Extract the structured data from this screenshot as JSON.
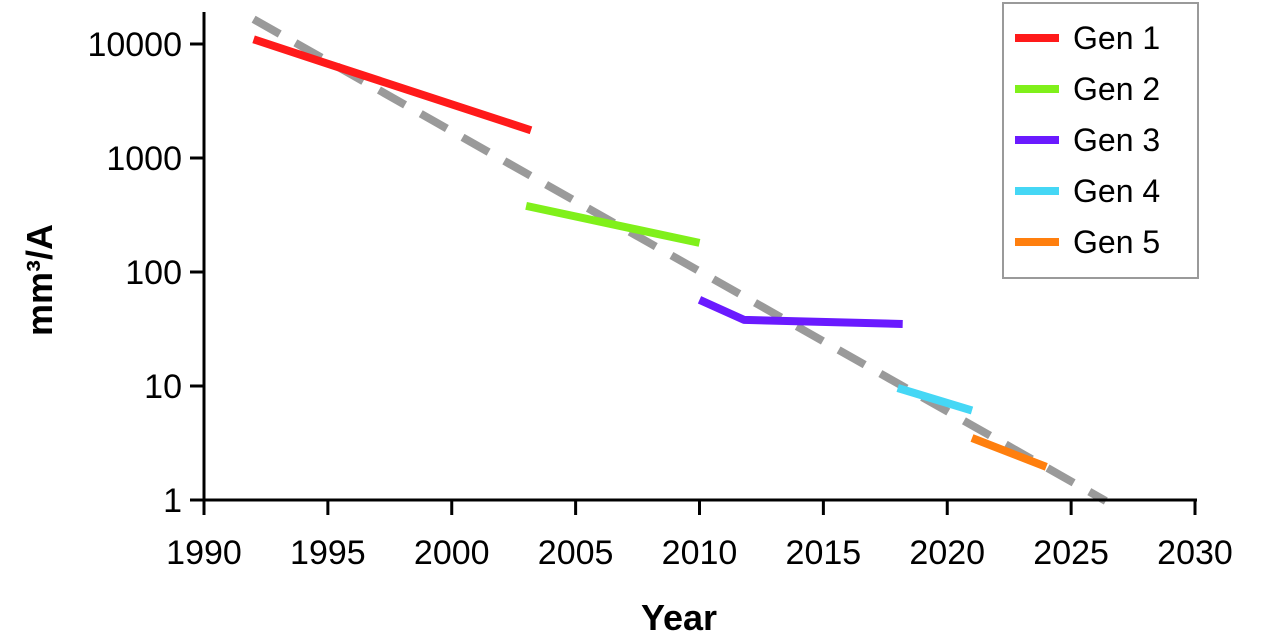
{
  "chart_data": {
    "type": "line",
    "xlabel": "Year",
    "ylabel": "mm³/A",
    "xlim": [
      1990,
      2030
    ],
    "ylim": [
      1,
      20000
    ],
    "yscale": "log",
    "x_ticks": [
      1990,
      1995,
      2000,
      2005,
      2010,
      2015,
      2020,
      2025,
      2030
    ],
    "y_ticks": [
      1,
      10,
      100,
      1000,
      10000
    ],
    "x_tick_labels": [
      "1990",
      "1995",
      "2000",
      "2005",
      "2010",
      "2015",
      "2020",
      "2025",
      "2030"
    ],
    "y_tick_labels": [
      "1",
      "10",
      "100",
      "1000",
      "10000"
    ],
    "grid": false,
    "legend_position": "top-right",
    "series": [
      {
        "name": "Gen 1",
        "color": "#ff1a1a",
        "x": [
          1992,
          1995,
          2003.2
        ],
        "y": [
          11000,
          6700,
          1750
        ]
      },
      {
        "name": "Gen 2",
        "color": "#80f01a",
        "x": [
          2003,
          2010
        ],
        "y": [
          380,
          180
        ]
      },
      {
        "name": "Gen 3",
        "color": "#6a1aff",
        "x": [
          2010,
          2011.8,
          2018.2
        ],
        "y": [
          57,
          38,
          35
        ]
      },
      {
        "name": "Gen 4",
        "color": "#45d7f5",
        "x": [
          2018,
          2021
        ],
        "y": [
          9.6,
          6.1
        ]
      },
      {
        "name": "Gen 5",
        "color": "#ff7f0e",
        "x": [
          2021,
          2024
        ],
        "y": [
          3.5,
          1.95
        ]
      }
    ],
    "trend": {
      "color": "#9a9a9a",
      "style": "dashed",
      "x": [
        1992,
        2026.4
      ],
      "y": [
        16500,
        0.98
      ]
    }
  }
}
